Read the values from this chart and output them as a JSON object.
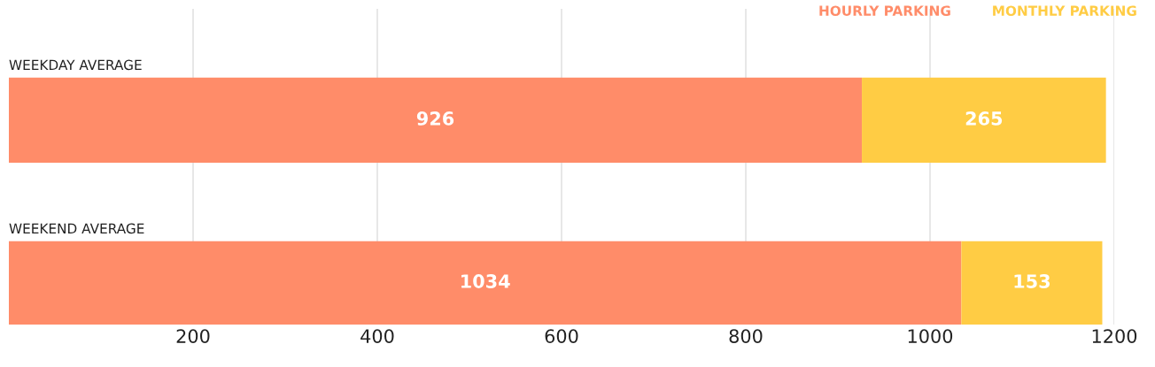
{
  "chart_data": {
    "type": "bar",
    "orientation": "horizontal",
    "stacked": true,
    "categories": [
      "WEEKDAY AVERAGE",
      "WEEKEND AVERAGE"
    ],
    "series": [
      {
        "name": "HOURLY PARKING",
        "color": "#ff8c69",
        "values": [
          926,
          1034
        ]
      },
      {
        "name": "MONTHLY PARKING",
        "color": "#ffcc44",
        "values": [
          265,
          153
        ]
      }
    ],
    "xlim": [
      0,
      1200
    ],
    "xticks": [
      200,
      400,
      600,
      800,
      1000,
      1200
    ],
    "grid": "x",
    "legend": "top right",
    "data_labels": true
  }
}
